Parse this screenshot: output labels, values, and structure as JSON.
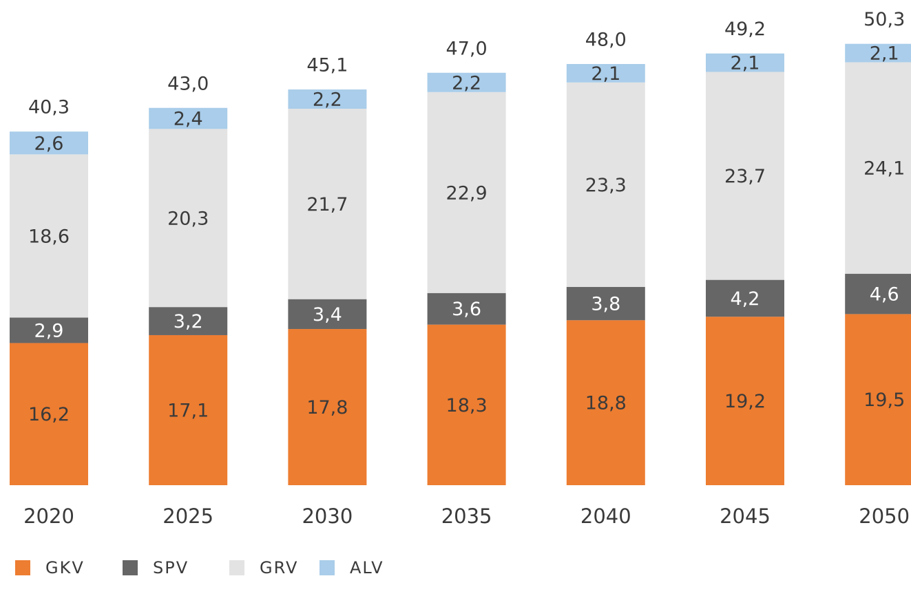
{
  "chart_data": {
    "type": "stacked-bar",
    "categories": [
      "2020",
      "2025",
      "2030",
      "2035",
      "2040",
      "2045",
      "2050"
    ],
    "series": [
      {
        "name": "GKV",
        "color": "#ed7d31",
        "label_color": "#3a3a3a",
        "values": [
          16.2,
          17.1,
          17.8,
          18.3,
          18.8,
          19.2,
          19.5
        ],
        "value_labels": [
          "16,2",
          "17,1",
          "17,8",
          "18,3",
          "18,8",
          "19,2",
          "19,5"
        ]
      },
      {
        "name": "SPV",
        "color": "#666666",
        "label_color": "#ffffff",
        "values": [
          2.9,
          3.2,
          3.4,
          3.6,
          3.8,
          4.2,
          4.6
        ],
        "value_labels": [
          "2,9",
          "3,2",
          "3,4",
          "3,6",
          "3,8",
          "4,2",
          "4,6"
        ]
      },
      {
        "name": "GRV",
        "color": "#e3e3e3",
        "label_color": "#3a3a3a",
        "values": [
          18.6,
          20.3,
          21.7,
          22.9,
          23.3,
          23.7,
          24.1
        ],
        "value_labels": [
          "18,6",
          "20,3",
          "21,7",
          "22,9",
          "23,3",
          "23,7",
          "24,1"
        ]
      },
      {
        "name": "ALV",
        "color": "#a9cdea",
        "label_color": "#3a3a3a",
        "values": [
          2.6,
          2.4,
          2.2,
          2.2,
          2.1,
          2.1,
          2.1
        ],
        "value_labels": [
          "2,6",
          "2,4",
          "2,2",
          "2,2",
          "2,1",
          "2,1",
          "2,1"
        ]
      }
    ],
    "totals": {
      "values": [
        40.3,
        43.0,
        45.1,
        47.0,
        48.0,
        49.2,
        50.3
      ],
      "value_labels": [
        "40,3",
        "43,0",
        "45,1",
        "47,0",
        "48,0",
        "49,2",
        "50,3"
      ]
    }
  }
}
